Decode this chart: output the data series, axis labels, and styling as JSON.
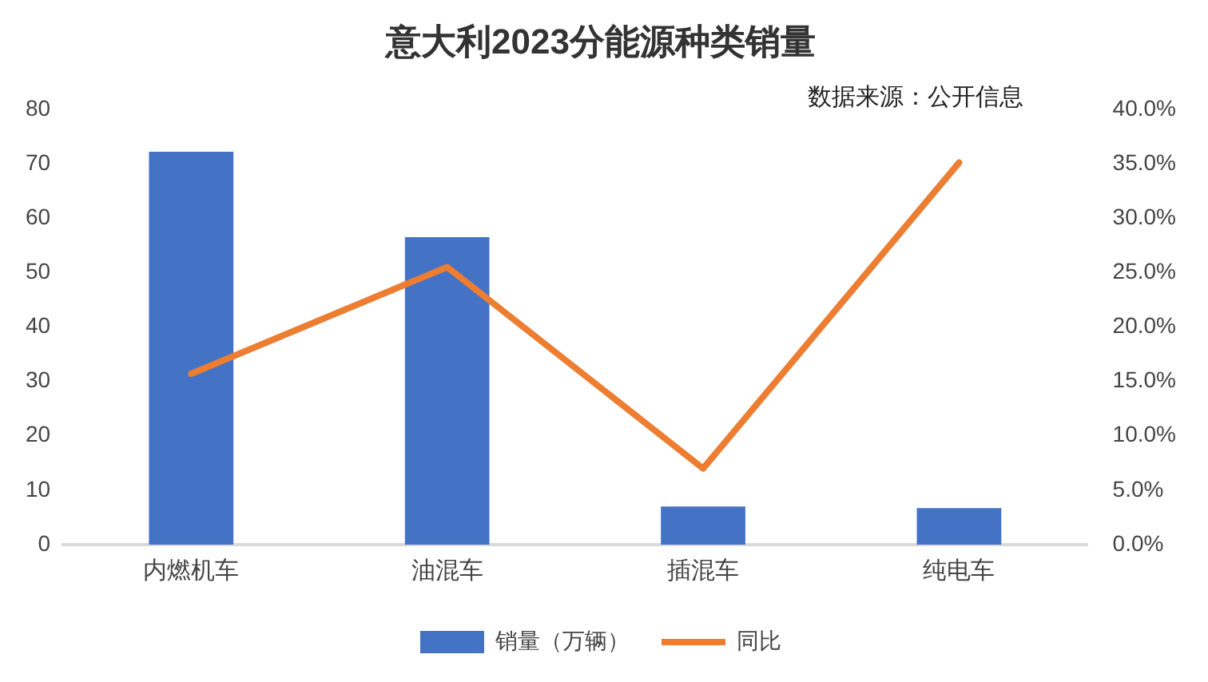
{
  "chart_data": {
    "type": "bar",
    "title": "意大利2023分能源种类销量",
    "annotations": [
      "数据来源：公开信息"
    ],
    "categories": [
      "内燃机车",
      "油混车",
      "插混车",
      "纯电车"
    ],
    "series": [
      {
        "name": "销量（万辆）",
        "color": "#4472c4",
        "values": [
          72.2,
          56.5,
          7.0,
          6.7
        ]
      },
      {
        "name": "同比",
        "type": "line",
        "axis": "y2",
        "color": "#ed7d31",
        "values": [
          15.7,
          25.5,
          7.0,
          35.1
        ]
      }
    ],
    "ylim": [
      0,
      80
    ],
    "yticks": [
      0,
      10,
      20,
      30,
      40,
      50,
      60,
      70,
      80
    ],
    "y2lim": [
      0,
      40
    ],
    "y2ticks": [
      {
        "value": 0,
        "label": "0.0%"
      },
      {
        "value": 5,
        "label": "5.0%"
      },
      {
        "value": 10,
        "label": "10.0%"
      },
      {
        "value": 15,
        "label": "15.0%"
      },
      {
        "value": 20,
        "label": "20.0%"
      },
      {
        "value": 25,
        "label": "25.0%"
      },
      {
        "value": 30,
        "label": "30.0%"
      },
      {
        "value": 35,
        "label": "35.0%"
      },
      {
        "value": 40,
        "label": "40.0%"
      }
    ],
    "grid": false,
    "legend": "bottom"
  }
}
